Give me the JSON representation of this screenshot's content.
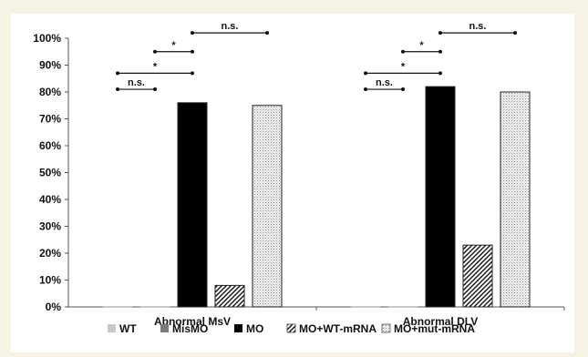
{
  "chart_data": {
    "type": "bar",
    "categories": [
      "Abnormal MsV",
      "Abnormal DLV"
    ],
    "series": [
      {
        "name": "WT",
        "values": [
          0,
          0
        ],
        "pattern": "solid-lightgray"
      },
      {
        "name": "MisMO",
        "values": [
          0,
          0
        ],
        "pattern": "solid-gray"
      },
      {
        "name": "MO",
        "values": [
          76,
          82
        ],
        "pattern": "solid-black"
      },
      {
        "name": "MO+WT-mRNA",
        "values": [
          8,
          23
        ],
        "pattern": "diagonal-hatch"
      },
      {
        "name": "MO+mut-mRNA",
        "values": [
          75,
          80
        ],
        "pattern": "dots"
      }
    ],
    "ylim": [
      0,
      100
    ],
    "ytick_values": [
      0,
      10,
      20,
      30,
      40,
      50,
      60,
      70,
      80,
      90,
      100
    ],
    "ytick_labels": [
      "0%",
      "10%",
      "20%",
      "30%",
      "40%",
      "50%",
      "60%",
      "70%",
      "80%",
      "90%",
      "100%"
    ],
    "legend_position": "bottom",
    "grid": false,
    "significance": [
      {
        "category": 0,
        "from": 0,
        "to": 1,
        "label": "n.s.",
        "level": 81
      },
      {
        "category": 0,
        "from": 0,
        "to": 2,
        "label": "*",
        "level": 87
      },
      {
        "category": 0,
        "from": 1,
        "to": 2,
        "label": "*",
        "level": 95
      },
      {
        "category": 0,
        "from": 2,
        "to": 4,
        "label": "n.s.",
        "level": 102
      },
      {
        "category": 1,
        "from": 0,
        "to": 1,
        "label": "n.s.",
        "level": 81
      },
      {
        "category": 1,
        "from": 0,
        "to": 2,
        "label": "*",
        "level": 87
      },
      {
        "category": 1,
        "from": 1,
        "to": 2,
        "label": "*",
        "level": 95
      },
      {
        "category": 1,
        "from": 2,
        "to": 4,
        "label": "n.s.",
        "level": 102
      }
    ]
  }
}
